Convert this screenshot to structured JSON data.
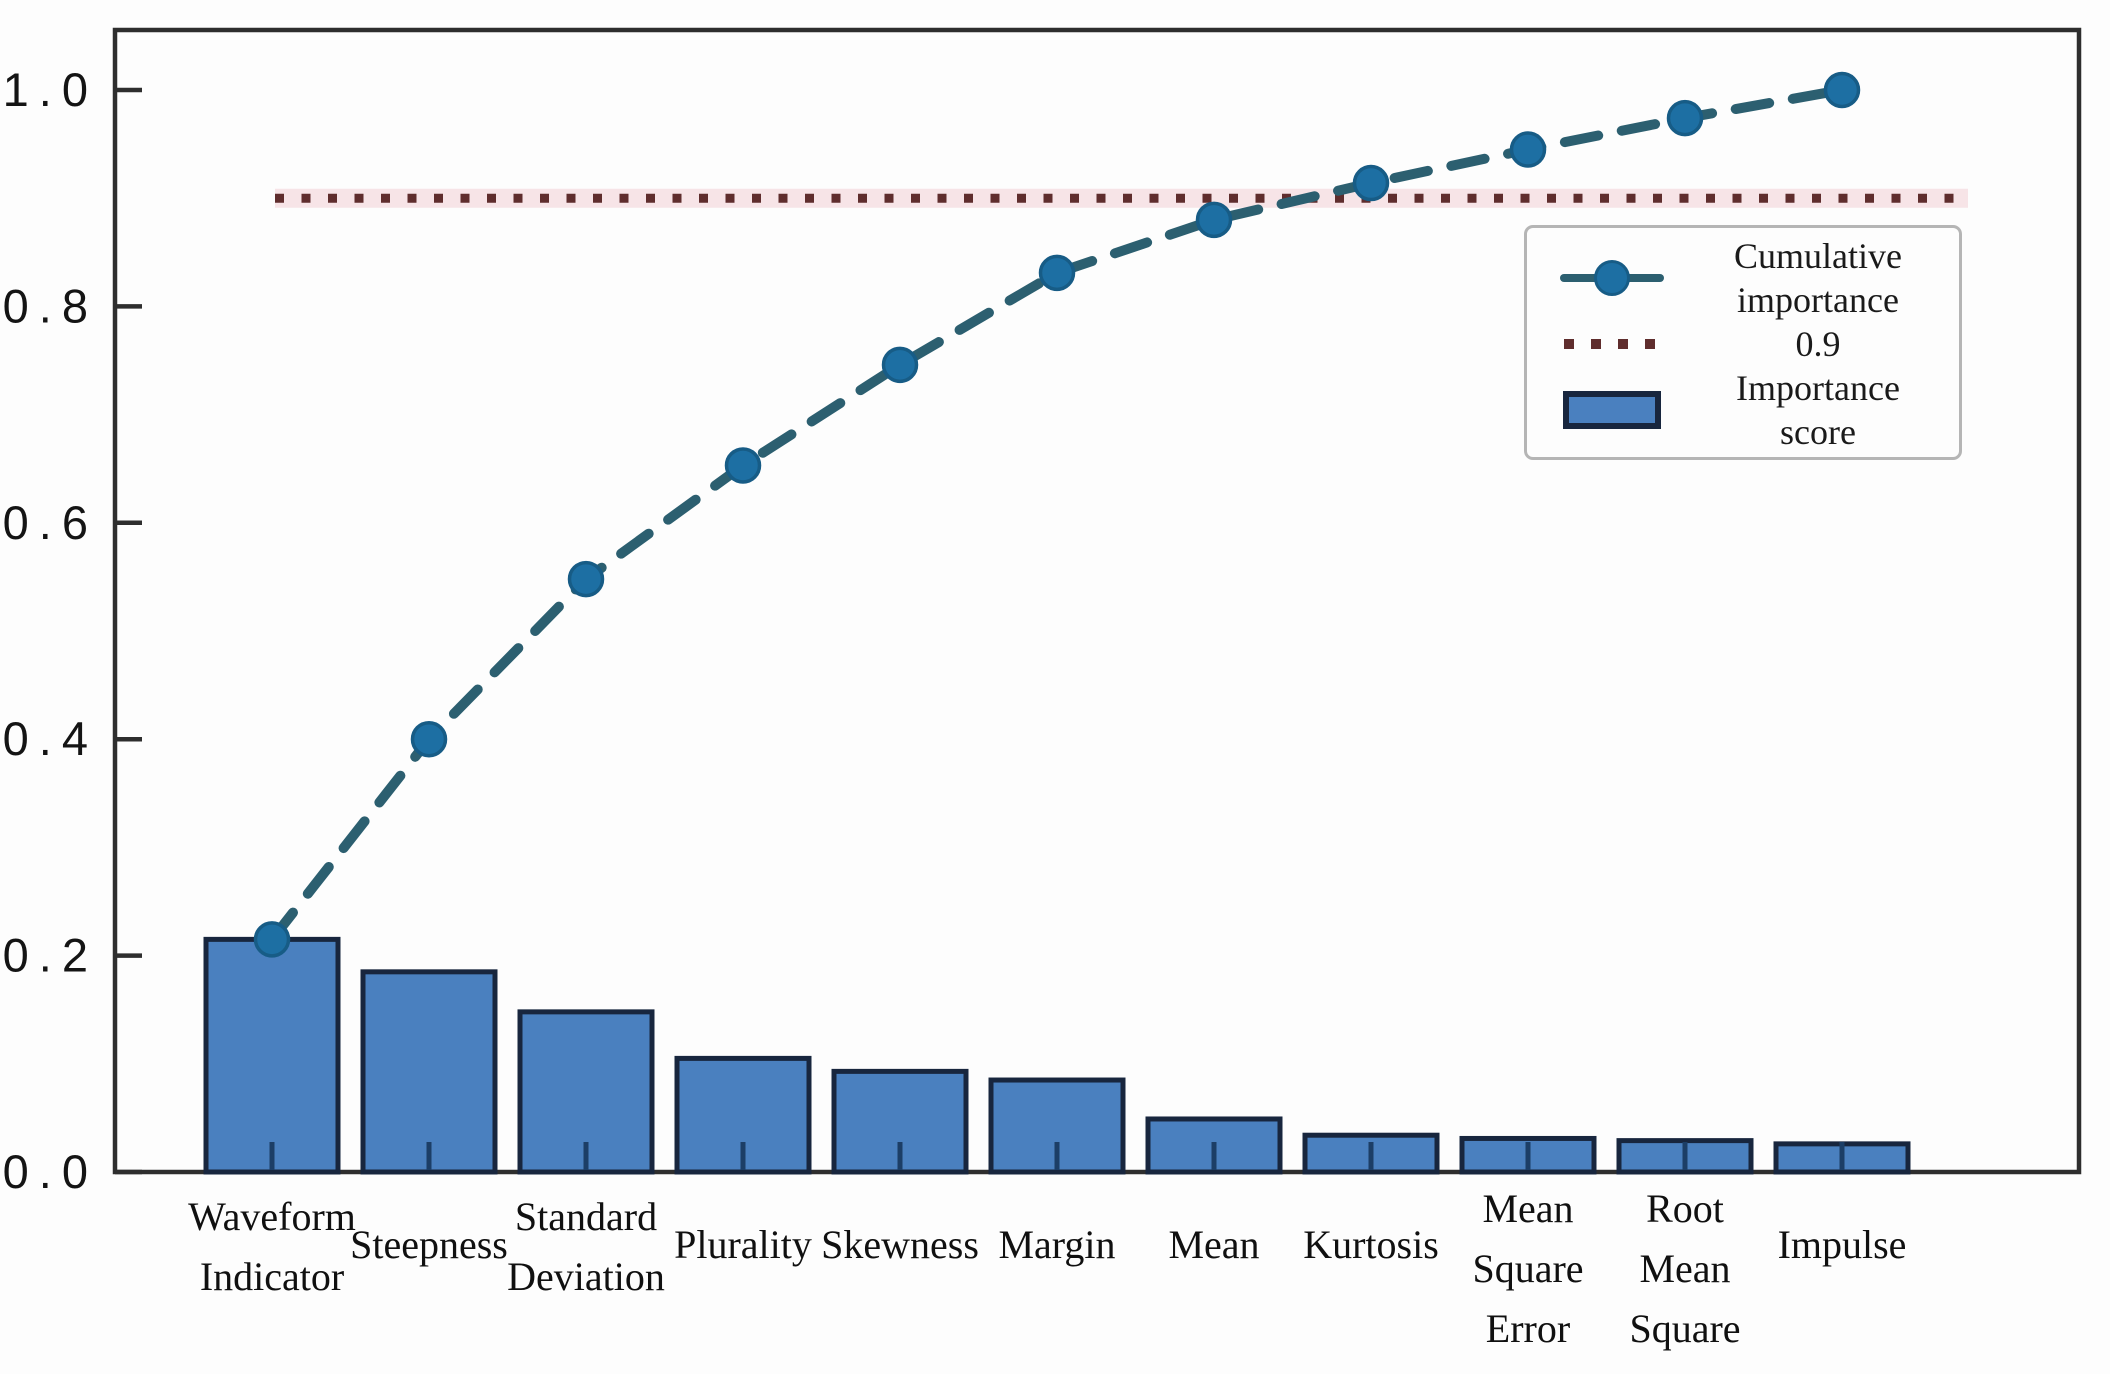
{
  "figure": {
    "background": "#fdfdfd"
  },
  "legend": {
    "position": "upper right",
    "entries": [
      {
        "symbol": "dashed-line-with-circle-marker",
        "label": "Cumulative\nimportance"
      },
      {
        "symbol": "dotted-line",
        "label": "0.9"
      },
      {
        "symbol": "bar-swatch",
        "label": "Importance\nscore"
      }
    ]
  },
  "chart_data": {
    "type": "bar",
    "subtype": "pareto-combo (bars + cumulative dashed line + dotted threshold)",
    "title": "",
    "xlabel": "",
    "ylabel": "",
    "grid": false,
    "ylim": [
      0,
      1.05
    ],
    "yticks": [
      "0.0",
      "0.2",
      "0.4",
      "0.6",
      "0.8",
      "1.0"
    ],
    "categories": [
      "Waveform Indicator",
      "Steepness",
      "Standard Deviation",
      "Plurality",
      "Skewness",
      "Margin",
      "Mean",
      "Kurtosis",
      "Mean Square Error",
      "Root Mean Square",
      "Impulse"
    ],
    "category_label_lines": [
      [
        "Waveform",
        "Indicator"
      ],
      [
        "Steepness"
      ],
      [
        "Standard",
        "Deviation"
      ],
      [
        "Plurality"
      ],
      [
        "Skewness"
      ],
      [
        "Margin"
      ],
      [
        "Mean"
      ],
      [
        "Kurtosis"
      ],
      [
        "Mean",
        "Square",
        "Error"
      ],
      [
        "Root",
        "Mean",
        "Square"
      ],
      [
        "Impulse"
      ]
    ],
    "series": [
      {
        "name": "Importance score",
        "type": "bar",
        "values": [
          0.215,
          0.185,
          0.148,
          0.105,
          0.093,
          0.085,
          0.049,
          0.034,
          0.031,
          0.029,
          0.026
        ]
      },
      {
        "name": "Cumulative importance",
        "type": "line",
        "style": "dashed with circle markers",
        "values": [
          0.215,
          0.4,
          0.548,
          0.653,
          0.746,
          0.831,
          0.88,
          0.914,
          0.945,
          0.974,
          1.0
        ]
      },
      {
        "name": "0.9",
        "type": "threshold-line",
        "style": "dotted",
        "value": 0.9
      }
    ],
    "colors": {
      "bar_fill": "#4a80bf",
      "bar_edge": "#18263e",
      "line_dash": "#2c5f70",
      "marker_fill": "#1d6fa3",
      "marker_edge": "#175c86",
      "threshold": "#5f2d2d",
      "threshold_glow": "#f7e4e7",
      "axis": "#2e2e2e",
      "x_tick": "#1c3e66",
      "tick_label": "#141414"
    }
  }
}
